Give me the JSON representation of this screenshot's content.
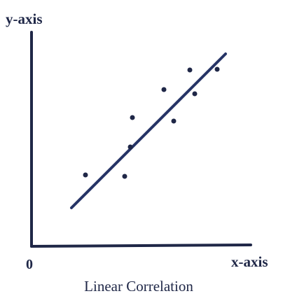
{
  "y_axis_label": "y-axis",
  "x_axis_label": "x-axis",
  "origin_label": "0",
  "caption": "Linear Correlation"
}
